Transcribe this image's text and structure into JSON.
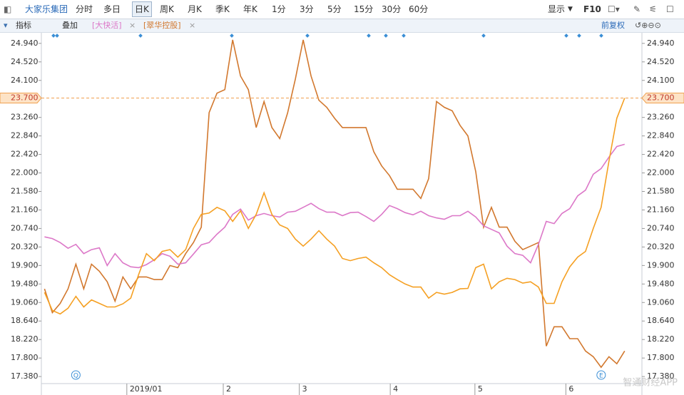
{
  "toolbar": {
    "stock": "大家乐集团",
    "tabs": [
      "分时",
      "多日",
      "日K",
      "周K",
      "月K",
      "季K",
      "年K",
      "1分",
      "3分",
      "5分",
      "15分",
      "30分",
      "60分"
    ],
    "active": "日K",
    "display": "显示",
    "f10": "F10"
  },
  "subbar": {
    "indicator": "指标",
    "overlay": "叠加",
    "adjust": "前复权"
  },
  "watermark": "智通财经APP",
  "chart_data": {
    "type": "line",
    "x": [
      0,
      1,
      2,
      3,
      4,
      5,
      6,
      7,
      8,
      9,
      10,
      11,
      12,
      13,
      14,
      15,
      16,
      17,
      18,
      19,
      20,
      21,
      22,
      23,
      24,
      25,
      26,
      27,
      28,
      29,
      30,
      31,
      32,
      33,
      34,
      35,
      36,
      37,
      38,
      39,
      40,
      41,
      42,
      43,
      44,
      45,
      46,
      47,
      48,
      49,
      50,
      51,
      52,
      53,
      54,
      55,
      56,
      57,
      58,
      59,
      60,
      61,
      62,
      63,
      64,
      65,
      66,
      67,
      68,
      69,
      70,
      71,
      72,
      73,
      74
    ],
    "xlim": [
      -0.4,
      76.2
    ],
    "xticks": [
      {
        "value": 10.5,
        "label": "2019/01"
      },
      {
        "value": 22.8,
        "label": "2"
      },
      {
        "value": 32.5,
        "label": "3"
      },
      {
        "value": 44.1,
        "label": "4"
      },
      {
        "value": 54.9,
        "label": "5"
      },
      {
        "value": 66.5,
        "label": "6"
      }
    ],
    "ylim": [
      17.22,
      25.18
    ],
    "yticks": [
      {
        "value": 17.38,
        "label": "17.380"
      },
      {
        "value": 17.8,
        "label": "17.800"
      },
      {
        "value": 18.22,
        "label": "18.220"
      },
      {
        "value": 18.64,
        "label": "18.640"
      },
      {
        "value": 19.06,
        "label": "19.060"
      },
      {
        "value": 19.48,
        "label": "19.480"
      },
      {
        "value": 19.9,
        "label": "19.900"
      },
      {
        "value": 20.32,
        "label": "20.320"
      },
      {
        "value": 20.74,
        "label": "20.740"
      },
      {
        "value": 21.16,
        "label": "21.160"
      },
      {
        "value": 21.58,
        "label": "21.580"
      },
      {
        "value": 22.0,
        "label": "22.000"
      },
      {
        "value": 22.42,
        "label": "22.420"
      },
      {
        "value": 22.84,
        "label": "22.840"
      },
      {
        "value": 23.26,
        "label": "23.260"
      },
      {
        "value": 24.1,
        "label": "24.100"
      },
      {
        "value": 24.52,
        "label": "24.520"
      },
      {
        "value": 24.94,
        "label": "24.940"
      }
    ],
    "current": {
      "value": 23.7,
      "label": "23.700"
    },
    "events": [
      {
        "x": 4,
        "label": "Q"
      },
      {
        "x": 71,
        "label": "E"
      }
    ],
    "series": [
      {
        "name": "大家乐集团",
        "color": "#f5a023",
        "values": [
          19.29,
          18.88,
          18.8,
          18.93,
          19.2,
          18.96,
          19.12,
          19.04,
          18.96,
          18.96,
          19.03,
          19.16,
          19.69,
          20.17,
          20.01,
          20.22,
          20.26,
          20.09,
          20.26,
          20.74,
          21.06,
          21.09,
          21.22,
          21.14,
          20.9,
          21.14,
          20.74,
          21.06,
          21.55,
          21.06,
          20.82,
          20.74,
          20.5,
          20.34,
          20.5,
          20.69,
          20.5,
          20.34,
          20.06,
          20.01,
          20.06,
          20.09,
          19.96,
          19.85,
          19.69,
          19.58,
          19.48,
          19.41,
          19.41,
          19.16,
          19.29,
          19.25,
          19.29,
          19.37,
          19.38,
          19.85,
          19.93,
          19.37,
          19.53,
          19.61,
          19.58,
          19.5,
          19.53,
          19.41,
          19.04,
          19.04,
          19.53,
          19.87,
          20.09,
          20.22,
          20.74,
          21.22,
          22.27,
          23.24,
          23.7
        ]
      },
      {
        "name": "[大快活]",
        "color": "#dc78c8",
        "values": [
          20.55,
          20.51,
          20.42,
          20.29,
          20.38,
          20.17,
          20.26,
          20.3,
          19.9,
          20.17,
          19.96,
          19.87,
          19.85,
          19.92,
          20.03,
          20.17,
          20.11,
          19.93,
          19.96,
          20.16,
          20.37,
          20.42,
          20.61,
          20.77,
          21.06,
          21.18,
          20.93,
          21.03,
          21.08,
          21.03,
          21.0,
          21.11,
          21.13,
          21.22,
          21.31,
          21.19,
          21.11,
          21.11,
          21.03,
          21.1,
          21.11,
          21.01,
          20.9,
          21.06,
          21.26,
          21.19,
          21.1,
          21.05,
          21.13,
          21.03,
          20.98,
          20.95,
          21.03,
          21.03,
          21.13,
          21.0,
          20.8,
          20.72,
          20.64,
          20.34,
          20.17,
          20.13,
          19.96,
          20.38,
          20.9,
          20.85,
          21.08,
          21.19,
          21.48,
          21.61,
          21.97,
          22.1,
          22.36,
          22.6,
          22.65
        ]
      },
      {
        "name": "[翠华控股]",
        "color": "#d2782e",
        "values": [
          19.37,
          18.83,
          19.04,
          19.37,
          19.93,
          19.37,
          19.93,
          19.77,
          19.53,
          19.09,
          19.64,
          19.37,
          19.64,
          19.64,
          19.58,
          19.58,
          19.9,
          19.85,
          20.17,
          20.42,
          20.77,
          23.37,
          23.81,
          23.89,
          25.02,
          24.2,
          23.89,
          23.03,
          23.62,
          23.03,
          22.78,
          23.36,
          24.13,
          25.02,
          24.2,
          23.65,
          23.49,
          23.24,
          23.03,
          23.03,
          23.03,
          23.03,
          22.48,
          22.16,
          21.94,
          21.63,
          21.63,
          21.63,
          21.42,
          21.87,
          23.62,
          23.49,
          23.41,
          23.08,
          22.84,
          22.03,
          20.77,
          21.22,
          20.77,
          20.77,
          20.45,
          20.26,
          20.34,
          20.42,
          18.07,
          18.51,
          18.51,
          18.24,
          18.24,
          17.96,
          17.83,
          17.59,
          17.83,
          17.67,
          17.96
        ]
      }
    ]
  }
}
